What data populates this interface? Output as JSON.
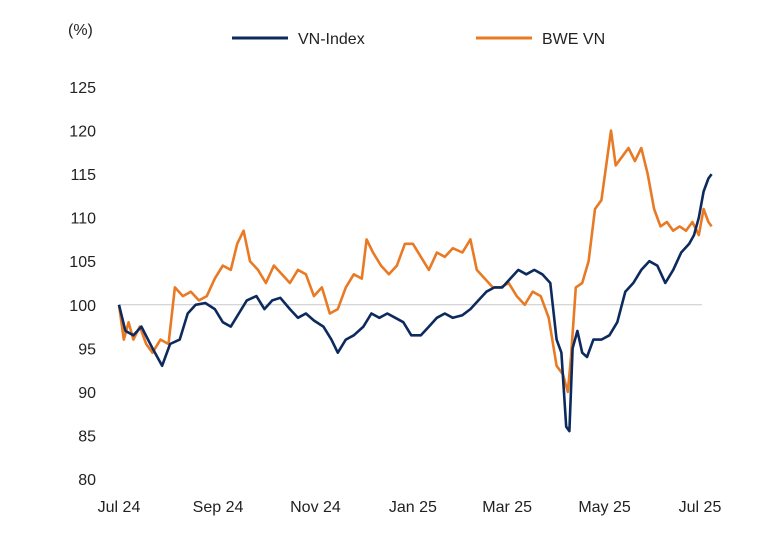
{
  "chart_data": {
    "type": "line",
    "ylabel": "(%)",
    "ylim": [
      80,
      125
    ],
    "yticks": [
      "80",
      "85",
      "90",
      "95",
      "100",
      "105",
      "110",
      "115",
      "120",
      "125"
    ],
    "xlim": [
      "2024-07-01",
      "2025-07-01"
    ],
    "xticks": [
      {
        "date": "2024-07-01",
        "label": "Jul 24"
      },
      {
        "date": "2024-09-01",
        "label": "Sep 24"
      },
      {
        "date": "2024-11-01",
        "label": "Nov 24"
      },
      {
        "date": "2025-01-01",
        "label": "Jan 25"
      },
      {
        "date": "2025-03-01",
        "label": "Mar 25"
      },
      {
        "date": "2025-05-01",
        "label": "May 25"
      },
      {
        "date": "2025-07-01",
        "label": "Jul 25"
      }
    ],
    "reference_line": 100,
    "legend_position": "top",
    "grid": false,
    "series": [
      {
        "name": "VN-Index",
        "color": "#0d2a5e",
        "points": [
          [
            "2024-07-01",
            100
          ],
          [
            "2024-07-05",
            97
          ],
          [
            "2024-07-10",
            96.5
          ],
          [
            "2024-07-15",
            97.5
          ],
          [
            "2024-07-22",
            95
          ],
          [
            "2024-07-28",
            93
          ],
          [
            "2024-08-02",
            95.5
          ],
          [
            "2024-08-08",
            96
          ],
          [
            "2024-08-13",
            99
          ],
          [
            "2024-08-18",
            100
          ],
          [
            "2024-08-24",
            100.2
          ],
          [
            "2024-08-30",
            99.5
          ],
          [
            "2024-09-04",
            98
          ],
          [
            "2024-09-09",
            97.5
          ],
          [
            "2024-09-14",
            99
          ],
          [
            "2024-09-19",
            100.5
          ],
          [
            "2024-09-25",
            101
          ],
          [
            "2024-09-30",
            99.5
          ],
          [
            "2024-10-05",
            100.5
          ],
          [
            "2024-10-10",
            100.8
          ],
          [
            "2024-10-16",
            99.5
          ],
          [
            "2024-10-21",
            98.5
          ],
          [
            "2024-10-26",
            99
          ],
          [
            "2024-10-31",
            98.2
          ],
          [
            "2024-11-06",
            97.5
          ],
          [
            "2024-11-11",
            96
          ],
          [
            "2024-11-15",
            94.5
          ],
          [
            "2024-11-20",
            96
          ],
          [
            "2024-11-25",
            96.5
          ],
          [
            "2024-12-01",
            97.5
          ],
          [
            "2024-12-06",
            99
          ],
          [
            "2024-12-11",
            98.5
          ],
          [
            "2024-12-16",
            99
          ],
          [
            "2024-12-21",
            98.5
          ],
          [
            "2024-12-26",
            98
          ],
          [
            "2024-12-31",
            96.5
          ],
          [
            "2025-01-06",
            96.5
          ],
          [
            "2025-01-11",
            97.5
          ],
          [
            "2025-01-16",
            98.5
          ],
          [
            "2025-01-21",
            99
          ],
          [
            "2025-01-26",
            98.5
          ],
          [
            "2025-02-01",
            98.8
          ],
          [
            "2025-02-06",
            99.5
          ],
          [
            "2025-02-11",
            100.5
          ],
          [
            "2025-02-16",
            101.5
          ],
          [
            "2025-02-21",
            102
          ],
          [
            "2025-02-26",
            102
          ],
          [
            "2025-03-03",
            103
          ],
          [
            "2025-03-08",
            104
          ],
          [
            "2025-03-13",
            103.5
          ],
          [
            "2025-03-18",
            104
          ],
          [
            "2025-03-23",
            103.5
          ],
          [
            "2025-03-28",
            102.5
          ],
          [
            "2025-04-01",
            96
          ],
          [
            "2025-04-04",
            94.5
          ],
          [
            "2025-04-07",
            86
          ],
          [
            "2025-04-09",
            85.5
          ],
          [
            "2025-04-11",
            95
          ],
          [
            "2025-04-14",
            97
          ],
          [
            "2025-04-17",
            94.5
          ],
          [
            "2025-04-20",
            94
          ],
          [
            "2025-04-24",
            96
          ],
          [
            "2025-04-29",
            96
          ],
          [
            "2025-05-04",
            96.5
          ],
          [
            "2025-05-09",
            98
          ],
          [
            "2025-05-14",
            101.5
          ],
          [
            "2025-05-19",
            102.5
          ],
          [
            "2025-05-24",
            104
          ],
          [
            "2025-05-29",
            105
          ],
          [
            "2025-06-03",
            104.5
          ],
          [
            "2025-06-08",
            102.5
          ],
          [
            "2025-06-13",
            104
          ],
          [
            "2025-06-18",
            106
          ],
          [
            "2025-06-23",
            107
          ],
          [
            "2025-06-26",
            108
          ],
          [
            "2025-06-29",
            110
          ],
          [
            "2025-07-02",
            113
          ],
          [
            "2025-07-05",
            114.5
          ],
          [
            "2025-07-07",
            115
          ]
        ]
      },
      {
        "name": "BWE VN",
        "color": "#e97a25",
        "points": [
          [
            "2024-07-01",
            100
          ],
          [
            "2024-07-04",
            96
          ],
          [
            "2024-07-07",
            98
          ],
          [
            "2024-07-10",
            96
          ],
          [
            "2024-07-14",
            97.5
          ],
          [
            "2024-07-18",
            95.5
          ],
          [
            "2024-07-22",
            94.5
          ],
          [
            "2024-07-27",
            96
          ],
          [
            "2024-08-01",
            95.5
          ],
          [
            "2024-08-05",
            102
          ],
          [
            "2024-08-10",
            101
          ],
          [
            "2024-08-15",
            101.5
          ],
          [
            "2024-08-20",
            100.5
          ],
          [
            "2024-08-25",
            101
          ],
          [
            "2024-08-30",
            103
          ],
          [
            "2024-09-04",
            104.5
          ],
          [
            "2024-09-09",
            104
          ],
          [
            "2024-09-13",
            107
          ],
          [
            "2024-09-17",
            108.5
          ],
          [
            "2024-09-21",
            105
          ],
          [
            "2024-09-26",
            104
          ],
          [
            "2024-10-01",
            102.5
          ],
          [
            "2024-10-06",
            104.5
          ],
          [
            "2024-10-11",
            103.5
          ],
          [
            "2024-10-16",
            102.5
          ],
          [
            "2024-10-21",
            104
          ],
          [
            "2024-10-26",
            103.5
          ],
          [
            "2024-10-31",
            101
          ],
          [
            "2024-11-05",
            102
          ],
          [
            "2024-11-10",
            99
          ],
          [
            "2024-11-15",
            99.5
          ],
          [
            "2024-11-20",
            102
          ],
          [
            "2024-11-25",
            103.5
          ],
          [
            "2024-11-30",
            103
          ],
          [
            "2024-12-03",
            107.5
          ],
          [
            "2024-12-07",
            106
          ],
          [
            "2024-12-12",
            104.5
          ],
          [
            "2024-12-17",
            103.5
          ],
          [
            "2024-12-22",
            104.5
          ],
          [
            "2024-12-27",
            107
          ],
          [
            "2025-01-01",
            107
          ],
          [
            "2025-01-06",
            105.5
          ],
          [
            "2025-01-11",
            104
          ],
          [
            "2025-01-16",
            106
          ],
          [
            "2025-01-21",
            105.5
          ],
          [
            "2025-01-26",
            106.5
          ],
          [
            "2025-02-01",
            106
          ],
          [
            "2025-02-06",
            107.5
          ],
          [
            "2025-02-10",
            104
          ],
          [
            "2025-02-15",
            103
          ],
          [
            "2025-02-20",
            102
          ],
          [
            "2025-02-25",
            102
          ],
          [
            "2025-03-02",
            102.5
          ],
          [
            "2025-03-07",
            101
          ],
          [
            "2025-03-12",
            100
          ],
          [
            "2025-03-17",
            101.5
          ],
          [
            "2025-03-22",
            101
          ],
          [
            "2025-03-27",
            98.5
          ],
          [
            "2025-04-01",
            93
          ],
          [
            "2025-04-05",
            92
          ],
          [
            "2025-04-08",
            90
          ],
          [
            "2025-04-10",
            94
          ],
          [
            "2025-04-13",
            102
          ],
          [
            "2025-04-17",
            102.5
          ],
          [
            "2025-04-21",
            105
          ],
          [
            "2025-04-25",
            111
          ],
          [
            "2025-04-29",
            112
          ],
          [
            "2025-05-02",
            116
          ],
          [
            "2025-05-05",
            120
          ],
          [
            "2025-05-08",
            116
          ],
          [
            "2025-05-12",
            117
          ],
          [
            "2025-05-16",
            118
          ],
          [
            "2025-05-20",
            116.5
          ],
          [
            "2025-05-24",
            118
          ],
          [
            "2025-05-28",
            115
          ],
          [
            "2025-06-01",
            111
          ],
          [
            "2025-06-05",
            109
          ],
          [
            "2025-06-09",
            109.5
          ],
          [
            "2025-06-13",
            108.5
          ],
          [
            "2025-06-17",
            109
          ],
          [
            "2025-06-21",
            108.5
          ],
          [
            "2025-06-25",
            109.5
          ],
          [
            "2025-06-29",
            108
          ],
          [
            "2025-07-02",
            111
          ],
          [
            "2025-07-05",
            109.5
          ],
          [
            "2025-07-07",
            109
          ]
        ]
      }
    ]
  }
}
